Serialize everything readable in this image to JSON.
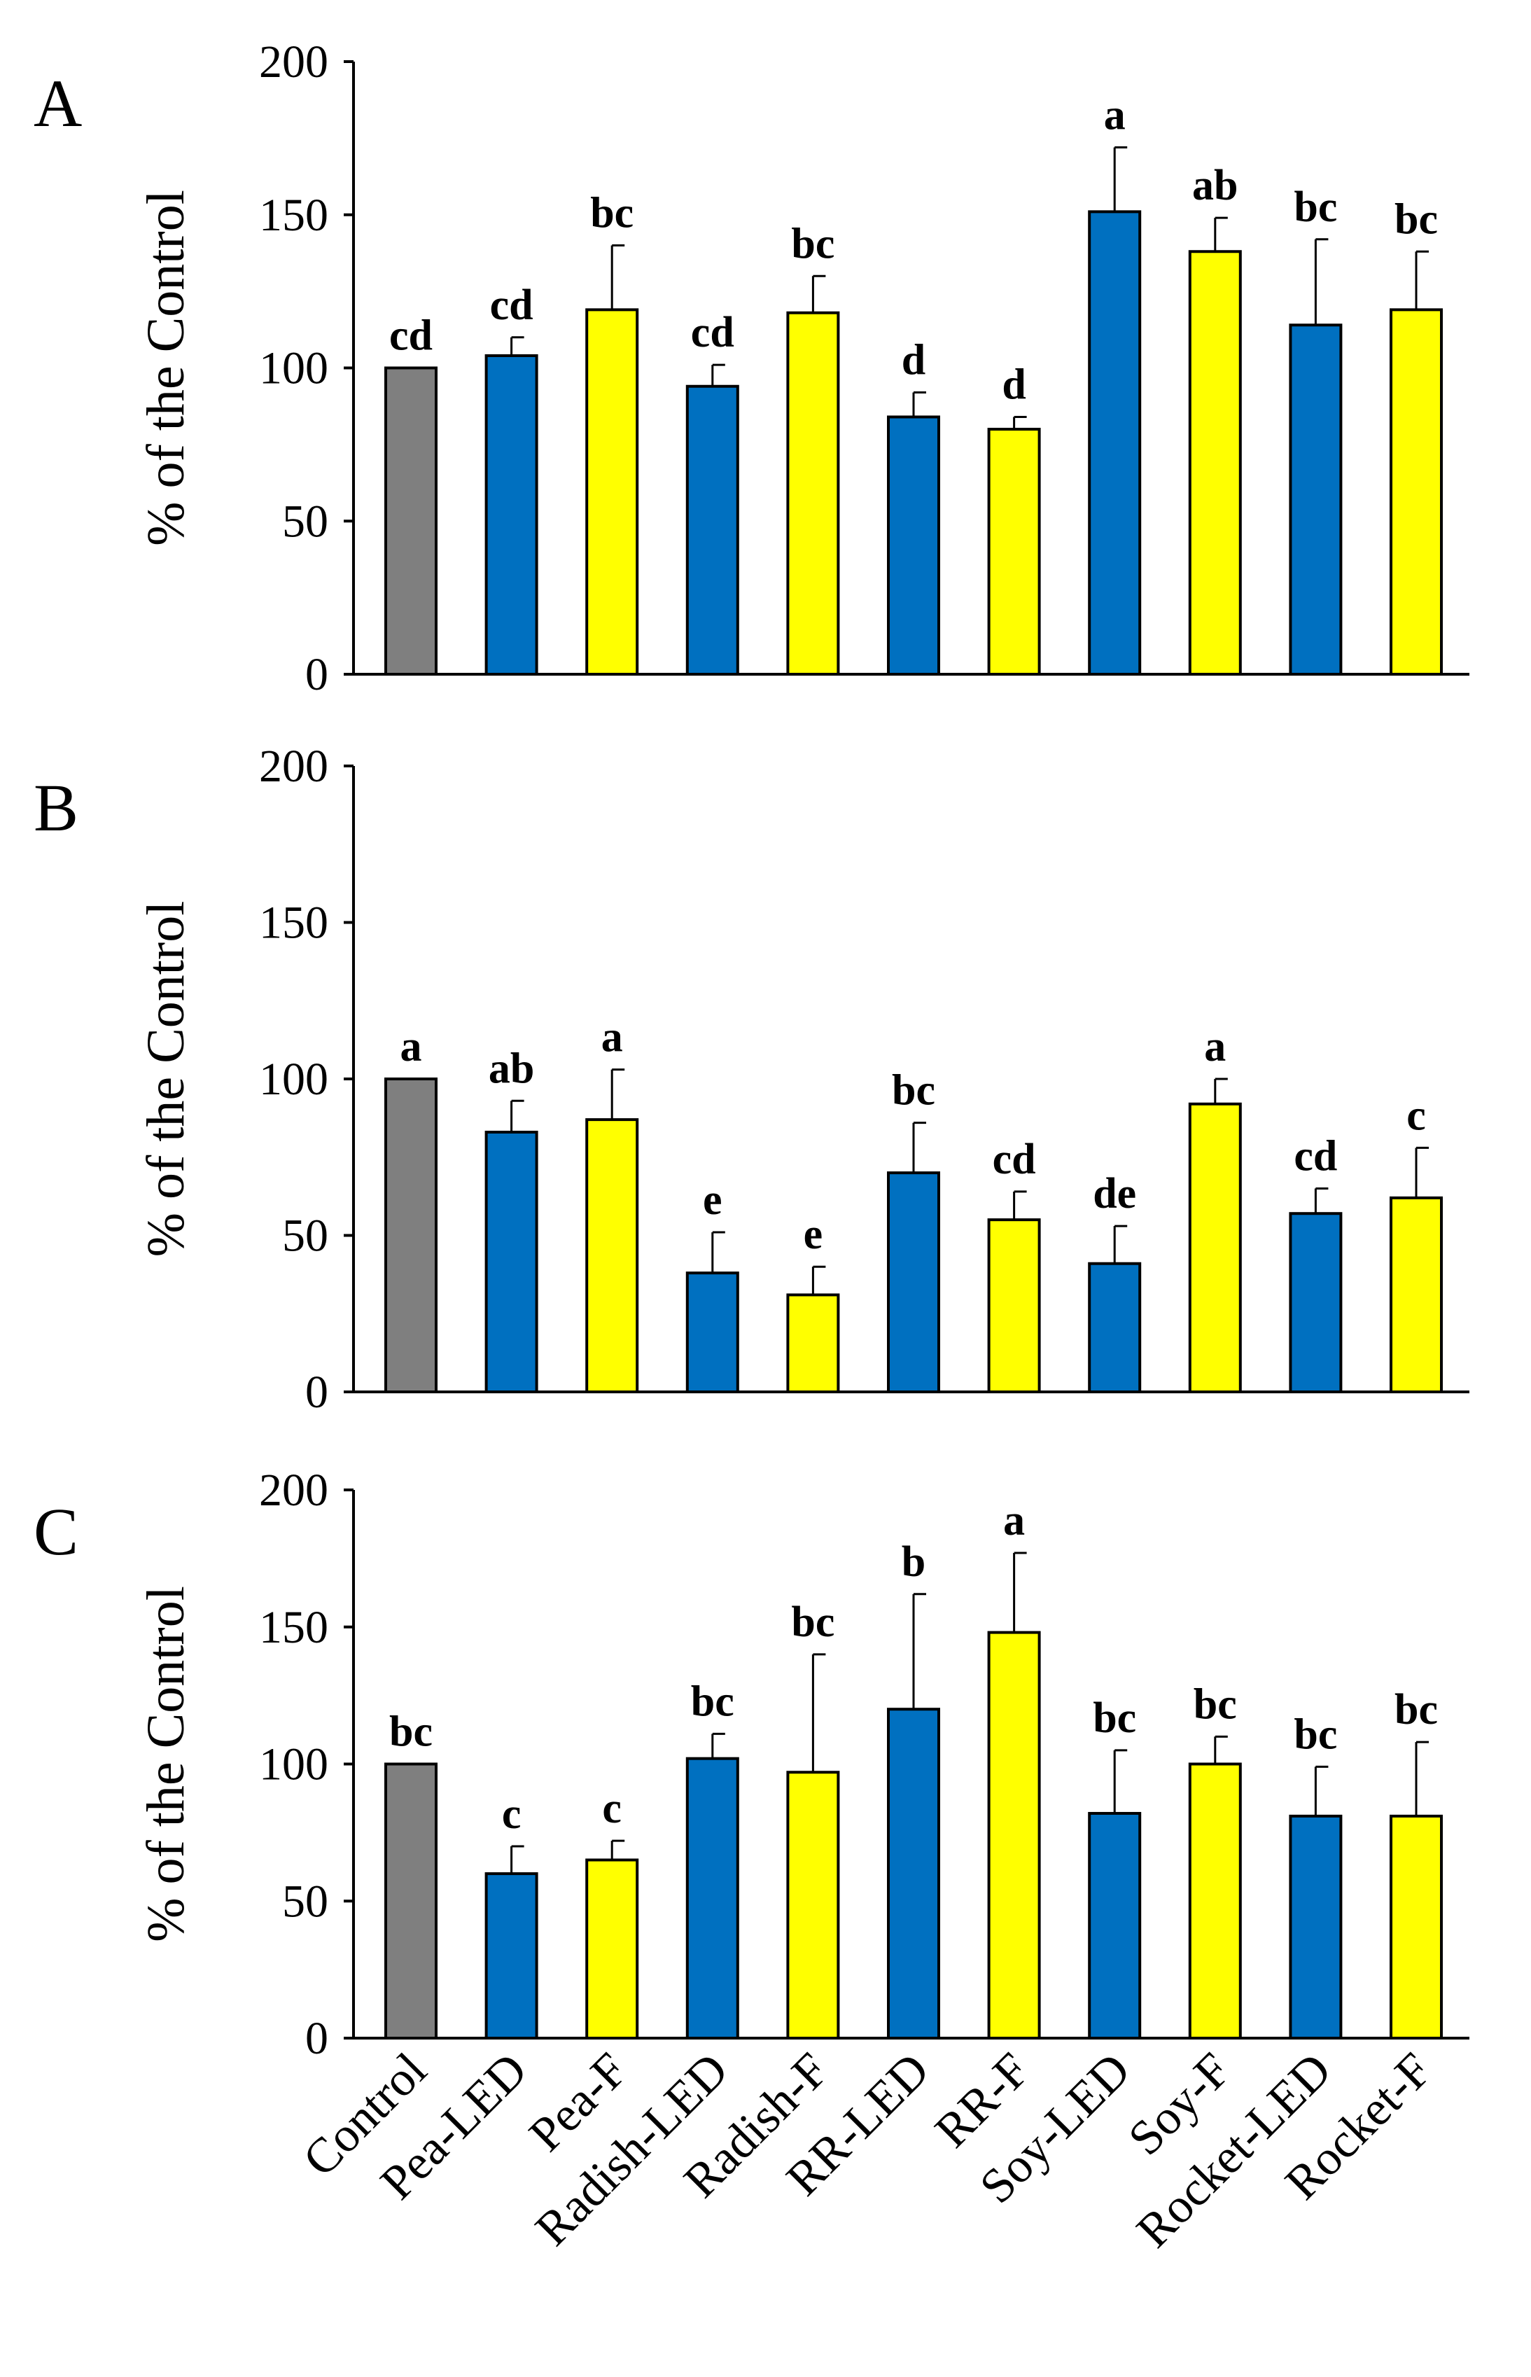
{
  "colors": {
    "control": "#7f7f7f",
    "led": "#0070c0",
    "fluorescent": "#ffff00",
    "outline": "#000000"
  },
  "chart_data": [
    {
      "type": "bar",
      "panel": "A",
      "ylabel": "% of the Control",
      "ylim": [
        0,
        200
      ],
      "yticks": [
        0,
        50,
        100,
        150,
        200
      ],
      "categories": [
        "Control",
        "Pea-LED",
        "Pea-F",
        "Radish-LED",
        "Radish-F",
        "RR-LED",
        "RR-F",
        "Soy-LED",
        "Soy-F",
        "Rocket-LED",
        "Rocket-F"
      ],
      "values": [
        100,
        104,
        119,
        94,
        118,
        84,
        80,
        151,
        138,
        114,
        119
      ],
      "errors": [
        0,
        6,
        21,
        7,
        12,
        8,
        4,
        21,
        11,
        28,
        19
      ],
      "letters": [
        "cd",
        "cd",
        "bc",
        "cd",
        "bc",
        "d",
        "d",
        "a",
        "ab",
        "bc",
        "bc"
      ],
      "grid": false,
      "legend": "none"
    },
    {
      "type": "bar",
      "panel": "B",
      "ylabel": "% of the Control",
      "ylim": [
        0,
        200
      ],
      "yticks": [
        0,
        50,
        100,
        150,
        200
      ],
      "categories": [
        "Control",
        "Pea-LED",
        "Pea-F",
        "Radish-LED",
        "Radish-F",
        "RR-LED",
        "RR-F",
        "Soy-LED",
        "Soy-F",
        "Rocket-LED",
        "Rocket-F"
      ],
      "values": [
        100,
        83,
        87,
        38,
        31,
        70,
        55,
        41,
        92,
        57,
        62
      ],
      "errors": [
        0,
        10,
        16,
        13,
        9,
        16,
        9,
        12,
        8,
        8,
        16
      ],
      "letters": [
        "a",
        "ab",
        "a",
        "e",
        "e",
        "bc",
        "cd",
        "de",
        "a",
        "cd",
        "c"
      ],
      "grid": false,
      "legend": "none"
    },
    {
      "type": "bar",
      "panel": "C",
      "ylabel": "% of the Control",
      "ylim": [
        0,
        200
      ],
      "yticks": [
        0,
        50,
        100,
        150,
        200
      ],
      "categories": [
        "Control",
        "Pea-LED",
        "Pea-F",
        "Radish-LED",
        "Radish-F",
        "RR-LED",
        "RR-F",
        "Soy-LED",
        "Soy-F",
        "Rocket-LED",
        "Rocket-F"
      ],
      "values": [
        100,
        60,
        65,
        102,
        97,
        120,
        148,
        82,
        100,
        81,
        81
      ],
      "errors": [
        0,
        10,
        7,
        9,
        43,
        42,
        29,
        23,
        10,
        18,
        27
      ],
      "letters": [
        "bc",
        "c",
        "c",
        "bc",
        "bc",
        "b",
        "a",
        "bc",
        "bc",
        "bc",
        "bc"
      ],
      "grid": false,
      "legend": "none"
    }
  ]
}
